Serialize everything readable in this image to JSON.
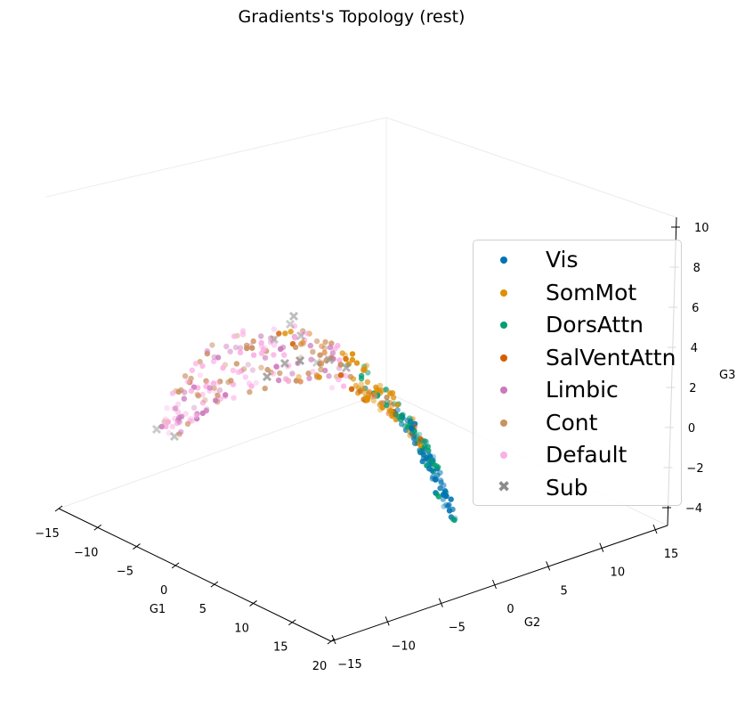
{
  "chart_data": {
    "type": "scatter",
    "projection": "3d",
    "title": "Gradients's Topology (rest)",
    "axes": {
      "x": {
        "label": "G1",
        "range": [
          -15,
          20
        ],
        "ticks": [
          "−15",
          "−10",
          "−5",
          "0",
          "5",
          "10",
          "15",
          "20"
        ]
      },
      "y": {
        "label": "G2",
        "range": [
          -15,
          15
        ],
        "ticks": [
          "−15",
          "−10",
          "−5",
          "0",
          "5",
          "10",
          "15"
        ]
      },
      "z": {
        "label": "G3",
        "range": [
          -4,
          10
        ],
        "ticks": [
          "−4",
          "−2",
          "0",
          "2",
          "4",
          "6",
          "8",
          "10"
        ]
      }
    },
    "legend_position": "right",
    "series": [
      {
        "name": "Vis",
        "color": "#0173b2",
        "marker": "circle"
      },
      {
        "name": "SomMot",
        "color": "#de8f05",
        "marker": "circle"
      },
      {
        "name": "DorsAttn",
        "color": "#029e73",
        "marker": "circle"
      },
      {
        "name": "SalVentAttn",
        "color": "#d55e00",
        "marker": "circle"
      },
      {
        "name": "Limbic",
        "color": "#cc78bc",
        "marker": "circle"
      },
      {
        "name": "Cont",
        "color": "#ca9161",
        "marker": "circle"
      },
      {
        "name": "Default",
        "color": "#fbafe4",
        "marker": "circle"
      },
      {
        "name": "Sub",
        "color": "#949494",
        "marker": "x"
      }
    ]
  }
}
